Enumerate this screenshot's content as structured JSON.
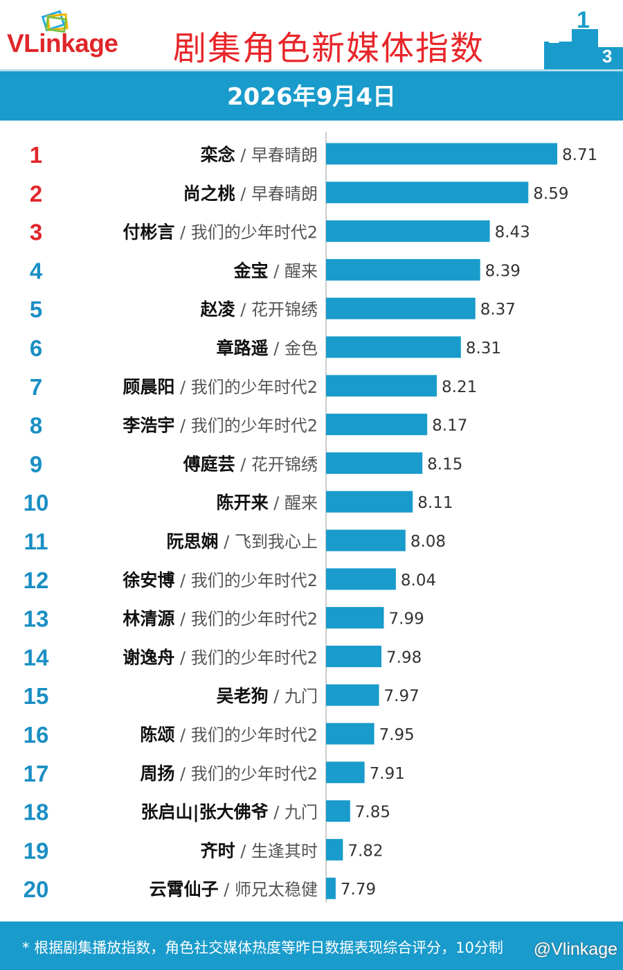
{
  "header": {
    "logo": {
      "text_vl": "VL",
      "text_rest": "inkage"
    },
    "title": "剧集角色新媒体指数",
    "date": "2026年9月4日"
  },
  "colors": {
    "bar": "#199bcb",
    "rank_top3": "#e0262a",
    "rank_other": "#1a8fc4",
    "name": "#111111",
    "show": "#555555",
    "title": "#e8262a"
  },
  "chart_data": {
    "type": "bar",
    "orientation": "horizontal",
    "title": "剧集角色新媒体指数",
    "rows": [
      {
        "rank": "1",
        "name": "栾念",
        "show": "早春晴朗",
        "value": 8.71,
        "label": "8.71"
      },
      {
        "rank": "2",
        "name": "尚之桃",
        "show": "早春晴朗",
        "value": 8.59,
        "label": "8.59"
      },
      {
        "rank": "3",
        "name": "付彬言",
        "show": "我们的少年时代2",
        "value": 8.43,
        "label": "8.43"
      },
      {
        "rank": "4",
        "name": "金宝",
        "show": "醒来",
        "value": 8.39,
        "label": "8.39"
      },
      {
        "rank": "5",
        "name": "赵凌",
        "show": "花开锦绣",
        "value": 8.37,
        "label": "8.37"
      },
      {
        "rank": "6",
        "name": "章路遥",
        "show": "金色",
        "value": 8.31,
        "label": "8.31"
      },
      {
        "rank": "7",
        "name": "顾晨阳",
        "show": "我们的少年时代2",
        "value": 8.21,
        "label": "8.21"
      },
      {
        "rank": "8",
        "name": "李浩宇",
        "show": "我们的少年时代2",
        "value": 8.17,
        "label": "8.17"
      },
      {
        "rank": "9",
        "name": "傅庭芸",
        "show": "花开锦绣",
        "value": 8.15,
        "label": "8.15"
      },
      {
        "rank": "10",
        "name": "陈开来",
        "show": "醒来",
        "value": 8.11,
        "label": "8.11"
      },
      {
        "rank": "11",
        "name": "阮思娴",
        "show": "飞到我心上",
        "value": 8.08,
        "label": "8.08"
      },
      {
        "rank": "12",
        "name": "徐安博",
        "show": "我们的少年时代2",
        "value": 8.04,
        "label": "8.04"
      },
      {
        "rank": "13",
        "name": "林清源",
        "show": "我们的少年时代2",
        "value": 7.99,
        "label": "7.99"
      },
      {
        "rank": "14",
        "name": "谢逸舟",
        "show": "我们的少年时代2",
        "value": 7.98,
        "label": "7.98"
      },
      {
        "rank": "15",
        "name": "吴老狗",
        "show": "九门",
        "value": 7.97,
        "label": "7.97"
      },
      {
        "rank": "16",
        "name": "陈颂",
        "show": "我们的少年时代2",
        "value": 7.95,
        "label": "7.95"
      },
      {
        "rank": "17",
        "name": "周扬",
        "show": "我们的少年时代2",
        "value": 7.91,
        "label": "7.91"
      },
      {
        "rank": "18",
        "name": "张启山|张大佛爷",
        "show": "九门",
        "value": 7.85,
        "label": "7.85"
      },
      {
        "rank": "19",
        "name": "齐时",
        "show": "生逢其时",
        "value": 7.82,
        "label": "7.82"
      },
      {
        "rank": "20",
        "name": "云霄仙子",
        "show": "师兄太稳健",
        "value": 7.79,
        "label": "7.79"
      }
    ],
    "separator": " / ",
    "xlim": [
      7.75,
      8.71
    ],
    "grid": false,
    "legend": "none"
  },
  "footer": {
    "note": "* 根据剧集播放指数，角色社交媒体热度等昨日数据表现综合评分，10分制",
    "watermark": "@Vlinkage"
  }
}
